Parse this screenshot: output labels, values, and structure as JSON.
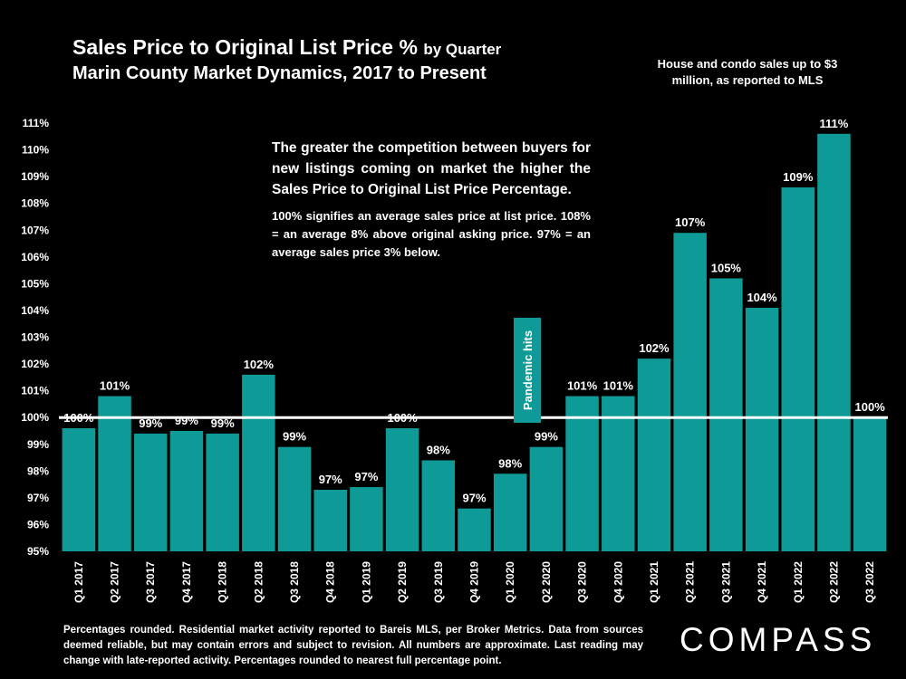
{
  "title": "Sales Price to Original List Price %",
  "title_suffix": "by Quarter",
  "subtitle": "Marin County Market Dynamics, 2017 to Present",
  "note_top": "House and condo sales up to $3 million, as reported to MLS",
  "annotation_main": "The greater the competition between buyers for new listings coming on market the higher the Sales Price to Original List Price Percentage.",
  "annotation_detail": "100% signifies an average sales price at list price. 108% = an average 8% above original asking price. 97% = an average sales price 3% below.",
  "pandemic_label": "Pandemic hits",
  "footnote": "Percentages rounded. Residential market activity reported to Bareis MLS, per Broker Metrics. Data from sources deemed reliable, but may contain errors and subject to revision. All numbers are approximate. Last reading may change with late-reported activity. Percentages rounded to nearest full percentage point.",
  "logo": "COMPASS",
  "colors": {
    "bar": "#0e9b97",
    "background": "#000000",
    "text": "#ffffff",
    "reference_line": "#ffffff"
  },
  "chart_data": {
    "type": "bar",
    "title": "Sales Price to Original List Price % by Quarter",
    "categories": [
      "Q1 2017",
      "Q2 2017",
      "Q3 2017",
      "Q4 2017",
      "Q1 2018",
      "Q2 2018",
      "Q3 2018",
      "Q4 2018",
      "Q1 2019",
      "Q2 2019",
      "Q3 2019",
      "Q4 2019",
      "Q1 2020",
      "Q2 2020",
      "Q3 2020",
      "Q4 2020",
      "Q1 2021",
      "Q2 2021",
      "Q3 2021",
      "Q4 2021",
      "Q1 2022",
      "Q2 2022",
      "Q3 2022"
    ],
    "values": [
      99.6,
      100.8,
      99.4,
      99.5,
      99.4,
      101.6,
      98.9,
      97.3,
      97.4,
      99.6,
      98.4,
      96.6,
      97.9,
      98.9,
      100.8,
      100.8,
      102.2,
      106.9,
      105.2,
      104.1,
      108.6,
      110.6,
      100.0
    ],
    "labels": [
      "100%",
      "101%",
      "99%",
      "99%",
      "99%",
      "102%",
      "99%",
      "97%",
      "97%",
      "100%",
      "98%",
      "97%",
      "98%",
      "99%",
      "101%",
      "101%",
      "102%",
      "107%",
      "105%",
      "104%",
      "109%",
      "111%",
      "100%"
    ],
    "ylim": [
      95,
      111
    ],
    "yticks": [
      "95%",
      "96%",
      "97%",
      "98%",
      "99%",
      "100%",
      "101%",
      "102%",
      "103%",
      "104%",
      "105%",
      "106%",
      "107%",
      "108%",
      "109%",
      "110%",
      "111%"
    ],
    "reference_line": 100,
    "xlabel": "",
    "ylabel": ""
  }
}
